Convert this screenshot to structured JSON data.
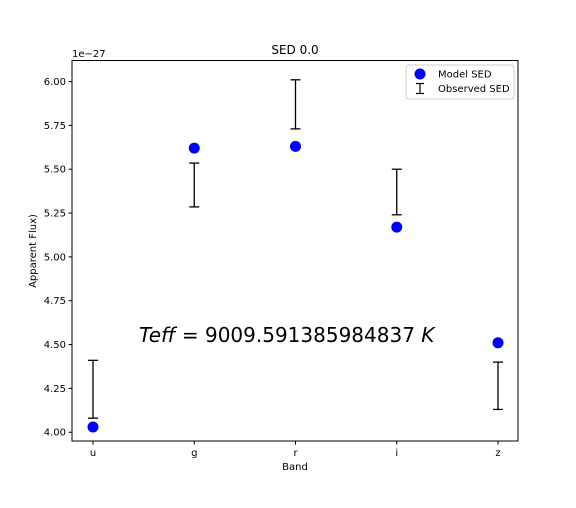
{
  "chart_data": {
    "type": "scatter",
    "title": "SED 0.0",
    "xlabel": "Band",
    "ylabel": "Apparent Flux)",
    "offset_label": "1e−27",
    "categories": [
      "u",
      "g",
      "r",
      "i",
      "z"
    ],
    "ylim": [
      3.95,
      6.12
    ],
    "yticks": [
      4.0,
      4.25,
      4.5,
      4.75,
      5.0,
      5.25,
      5.5,
      5.75,
      6.0
    ],
    "ytick_labels": [
      "4.00",
      "4.25",
      "4.50",
      "4.75",
      "5.00",
      "5.25",
      "5.50",
      "5.75",
      "6.00"
    ],
    "grid": false,
    "legend_position": "top-right",
    "series": [
      {
        "name": "Model SED",
        "kind": "points",
        "color": "#0000ff",
        "values": [
          4.03,
          5.62,
          5.63,
          5.17,
          4.51
        ]
      },
      {
        "name": "Observed SED",
        "kind": "errorbars",
        "color": "#000000",
        "lower": [
          4.08,
          5.285,
          5.73,
          5.24,
          4.13
        ],
        "upper": [
          4.41,
          5.535,
          6.01,
          5.5,
          4.4
        ]
      }
    ],
    "annotation": {
      "label": "Teff",
      "equals": " = ",
      "value": "9009.591385984837",
      "unit": "K"
    }
  }
}
